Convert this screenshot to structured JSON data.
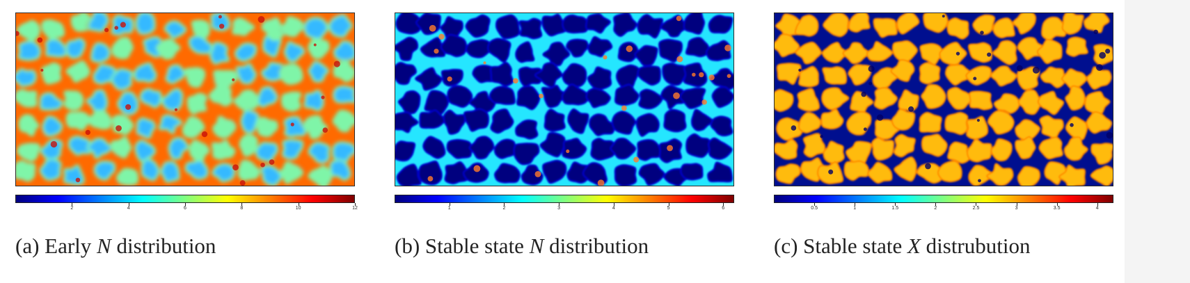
{
  "colormap": [
    "#00007f",
    "#0000ff",
    "#0080ff",
    "#00ffff",
    "#80ff80",
    "#ffff00",
    "#ff8000",
    "#ff0000",
    "#7f0000"
  ],
  "panels": [
    {
      "key": "a",
      "pattern": "early-spots",
      "colors": {
        "background": "#ff6a00",
        "boundary": "#c8120a",
        "fill": "#34b9ff",
        "edge": "#7ff5a8"
      },
      "colorbar": {
        "min": 0,
        "max": 12,
        "ticks": [
          "2",
          "4",
          "6",
          "8",
          "10",
          "12"
        ]
      },
      "caption": {
        "prefix": "(a) Early ",
        "variable": "N",
        "suffix": " distribution"
      }
    },
    {
      "key": "b",
      "pattern": "stable-network",
      "colors": {
        "background": "#25e6ff",
        "boundary": "#ff7a2a",
        "fill": "#00007f",
        "edge": "#0000c8"
      },
      "colorbar": {
        "min": 0,
        "max": 6.2,
        "ticks": [
          "1",
          "2",
          "3",
          "4",
          "5",
          "6"
        ]
      },
      "caption": {
        "prefix": "(b) Stable state ",
        "variable": "N",
        "suffix": " distribution"
      }
    },
    {
      "key": "c",
      "pattern": "stable-cells",
      "colors": {
        "background": "#000f8f",
        "boundary": "#000066",
        "fill": "#ffbb10",
        "edge": "#ff8a00"
      },
      "colorbar": {
        "min": 0,
        "max": 4.2,
        "ticks": [
          "0.5",
          "1",
          "1.5",
          "2",
          "2.5",
          "3",
          "3.5",
          "4"
        ]
      },
      "caption": {
        "prefix": "(c) Stable state ",
        "variable": "X",
        "suffix": " distrubution"
      }
    }
  ]
}
